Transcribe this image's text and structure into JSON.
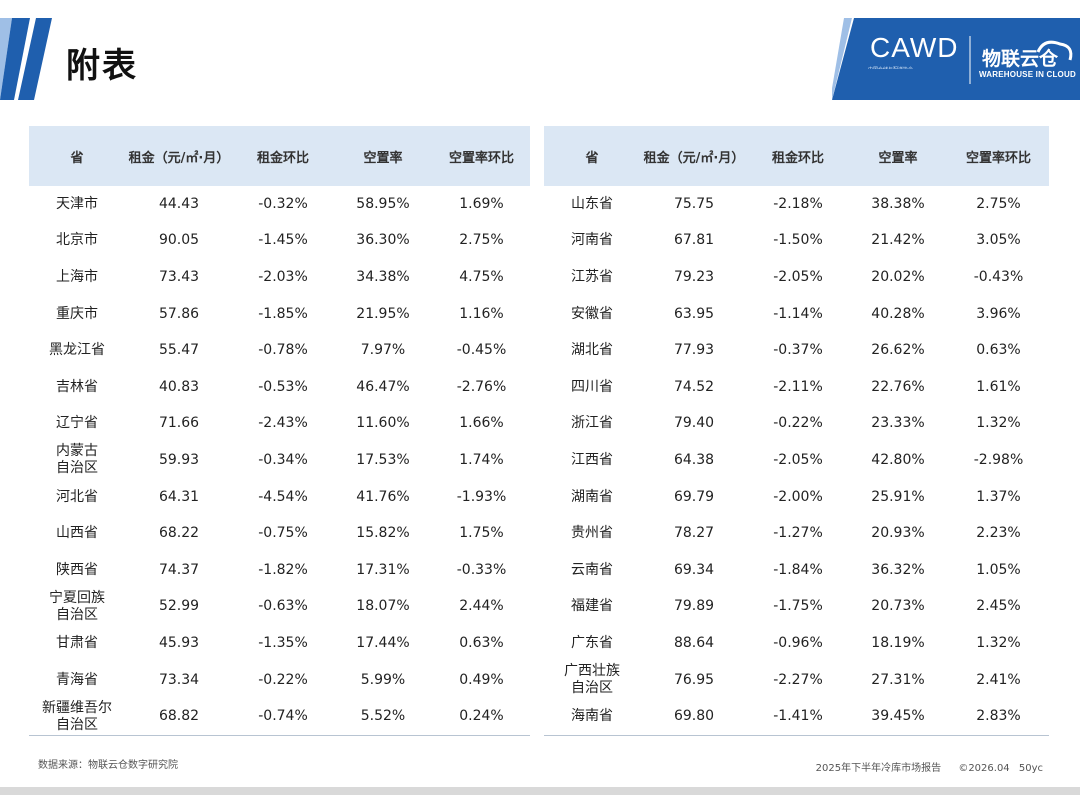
{
  "page": {
    "title": "附表"
  },
  "logo": {
    "cawd": "CAWD",
    "cawd_sub": "中国仓储与配送协会",
    "cn_name": "物联云仓",
    "en_name": "WAREHOUSE IN CLOUD"
  },
  "colors": {
    "brand_blue": "#1f5fae",
    "header_fill": "#dbe7f4"
  },
  "table_left": {
    "headers": [
      "省",
      "租金（元/㎡·月）",
      "租金环比",
      "空置率",
      "空置率环比"
    ],
    "rows": [
      [
        "天津市",
        "44.43",
        "-0.32%",
        "58.95%",
        "1.69%"
      ],
      [
        "北京市",
        "90.05",
        "-1.45%",
        "36.30%",
        "2.75%"
      ],
      [
        "上海市",
        "73.43",
        "-2.03%",
        "34.38%",
        "4.75%"
      ],
      [
        "重庆市",
        "57.86",
        "-1.85%",
        "21.95%",
        "1.16%"
      ],
      [
        "黑龙江省",
        "55.47",
        "-0.78%",
        "7.97%",
        "-0.45%"
      ],
      [
        "吉林省",
        "40.83",
        "-0.53%",
        "46.47%",
        "-2.76%"
      ],
      [
        "辽宁省",
        "71.66",
        "-2.43%",
        "11.60%",
        "1.66%"
      ],
      [
        "内蒙古\n自治区",
        "59.93",
        "-0.34%",
        "17.53%",
        "1.74%"
      ],
      [
        "河北省",
        "64.31",
        "-4.54%",
        "41.76%",
        "-1.93%"
      ],
      [
        "山西省",
        "68.22",
        "-0.75%",
        "15.82%",
        "1.75%"
      ],
      [
        "陕西省",
        "74.37",
        "-1.82%",
        "17.31%",
        "-0.33%"
      ],
      [
        "宁夏回族\n自治区",
        "52.99",
        "-0.63%",
        "18.07%",
        "2.44%"
      ],
      [
        "甘肃省",
        "45.93",
        "-1.35%",
        "17.44%",
        "0.63%"
      ],
      [
        "青海省",
        "73.34",
        "-0.22%",
        "5.99%",
        "0.49%"
      ],
      [
        "新疆维吾尔\n自治区",
        "68.82",
        "-0.74%",
        "5.52%",
        "0.24%"
      ]
    ]
  },
  "table_right": {
    "headers": [
      "省",
      "租金（元/㎡·月）",
      "租金环比",
      "空置率",
      "空置率环比"
    ],
    "rows": [
      [
        "山东省",
        "75.75",
        "-2.18%",
        "38.38%",
        "2.75%"
      ],
      [
        "河南省",
        "67.81",
        "-1.50%",
        "21.42%",
        "3.05%"
      ],
      [
        "江苏省",
        "79.23",
        "-2.05%",
        "20.02%",
        "-0.43%"
      ],
      [
        "安徽省",
        "63.95",
        "-1.14%",
        "40.28%",
        "3.96%"
      ],
      [
        "湖北省",
        "77.93",
        "-0.37%",
        "26.62%",
        "0.63%"
      ],
      [
        "四川省",
        "74.52",
        "-2.11%",
        "22.76%",
        "1.61%"
      ],
      [
        "浙江省",
        "79.40",
        "-0.22%",
        "23.33%",
        "1.32%"
      ],
      [
        "江西省",
        "64.38",
        "-2.05%",
        "42.80%",
        "-2.98%"
      ],
      [
        "湖南省",
        "69.79",
        "-2.00%",
        "25.91%",
        "1.37%"
      ],
      [
        "贵州省",
        "78.27",
        "-1.27%",
        "20.93%",
        "2.23%"
      ],
      [
        "云南省",
        "69.34",
        "-1.84%",
        "36.32%",
        "1.05%"
      ],
      [
        "福建省",
        "79.89",
        "-1.75%",
        "20.73%",
        "2.45%"
      ],
      [
        "广东省",
        "88.64",
        "-0.96%",
        "18.19%",
        "1.32%"
      ],
      [
        "广西壮族\n自治区",
        "76.95",
        "-2.27%",
        "27.31%",
        "2.41%"
      ],
      [
        "海南省",
        "69.80",
        "-1.41%",
        "39.45%",
        "2.83%"
      ]
    ]
  },
  "footer": {
    "source": "数据来源：物联云仓数字研究院",
    "report": "2025年下半年冷库市场报告",
    "copyright": "©2026.04",
    "code": "50yc"
  }
}
